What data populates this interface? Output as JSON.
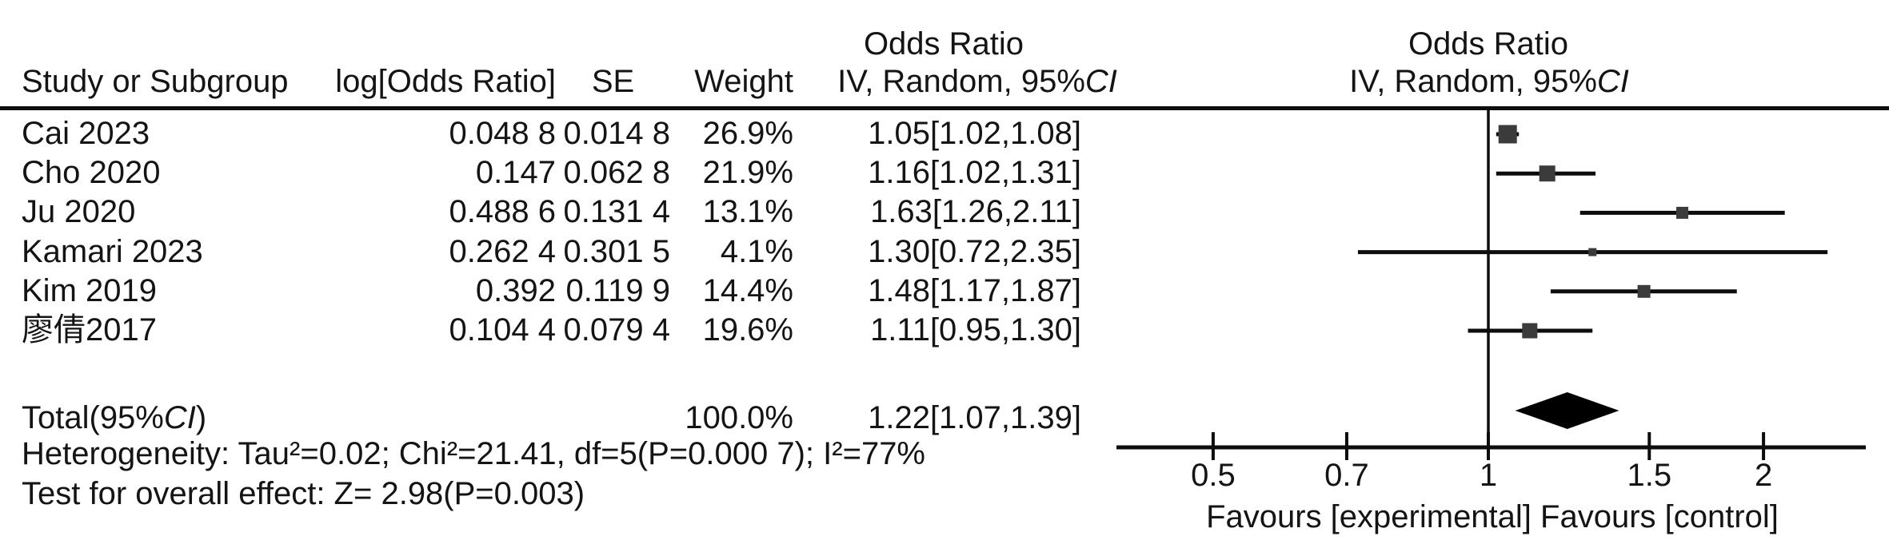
{
  "header": {
    "or_label": "Odds Ratio",
    "model_label_pre": "IV, Random, 95%",
    "ci_italic": "CI",
    "col_study": "Study or Subgroup",
    "col_logor": "log[Odds Ratio]",
    "col_se": "SE",
    "col_weight": "Weight"
  },
  "rows": [
    {
      "study": "Cai 2023",
      "log_or": "0.048 8",
      "se": "0.014 8",
      "weight": "26.9%",
      "ci": "1.05[1.02,1.08]"
    },
    {
      "study": "Cho 2020",
      "log_or": "0.147",
      "se": "0.062 8",
      "weight": "21.9%",
      "ci": "1.16[1.02,1.31]"
    },
    {
      "study": "Ju 2020",
      "log_or": "0.488 6",
      "se": "0.131 4",
      "weight": "13.1%",
      "ci": "1.63[1.26,2.11]"
    },
    {
      "study": "Kamari 2023",
      "log_or": "0.262 4",
      "se": "0.301 5",
      "weight": "4.1%",
      "ci": "1.30[0.72,2.35]"
    },
    {
      "study": "Kim 2019",
      "log_or": "0.392",
      "se": "0.119 9",
      "weight": "14.4%",
      "ci": "1.48[1.17,1.87]"
    },
    {
      "study": "廖倩2017",
      "log_or": "0.104 4",
      "se": "0.079 4",
      "weight": "19.6%",
      "ci": "1.11[0.95,1.30]"
    }
  ],
  "total": {
    "label_pre": "Total(95%",
    "label_ci": "CI",
    "label_post": ")",
    "weight": "100.0%",
    "ci": "1.22[1.07,1.39]"
  },
  "heterogeneity": "Heterogeneity: Tau²=0.02; Chi²=21.41, df=5(P=0.000 7); I²=77%",
  "overall_test": "Test for overall effect: Z= 2.98(P=0.003)",
  "axis": {
    "tick_labels": [
      "0.5",
      "0.7",
      "1",
      "1.5",
      "2"
    ],
    "favours": "Favours [experimental] Favours [control]"
  },
  "colors": {
    "line": "#0d0d0d",
    "square": "#3b3b3b",
    "diamond": "#000000",
    "text": "#141414"
  },
  "chart_data": {
    "type": "forest",
    "scale": "log",
    "effect_measure": "Odds Ratio",
    "model": "IV, Random, 95%CI",
    "null_line": 1,
    "x_ticks": [
      0.5,
      0.7,
      1,
      1.5,
      2
    ],
    "x_range": [
      0.39,
      2.6
    ],
    "xlabel": "Favours [experimental] Favours [control]",
    "studies": [
      {
        "name": "Cai 2023",
        "log_or": 0.0488,
        "se": 0.0148,
        "weight_pct": 26.9,
        "or": 1.05,
        "ci_low": 1.02,
        "ci_high": 1.08
      },
      {
        "name": "Cho 2020",
        "log_or": 0.147,
        "se": 0.0628,
        "weight_pct": 21.9,
        "or": 1.16,
        "ci_low": 1.02,
        "ci_high": 1.31
      },
      {
        "name": "Ju 2020",
        "log_or": 0.4886,
        "se": 0.1314,
        "weight_pct": 13.1,
        "or": 1.63,
        "ci_low": 1.26,
        "ci_high": 2.11
      },
      {
        "name": "Kamari 2023",
        "log_or": 0.2624,
        "se": 0.3015,
        "weight_pct": 4.1,
        "or": 1.3,
        "ci_low": 0.72,
        "ci_high": 2.35
      },
      {
        "name": "Kim 2019",
        "log_or": 0.392,
        "se": 0.1199,
        "weight_pct": 14.4,
        "or": 1.48,
        "ci_low": 1.17,
        "ci_high": 1.87
      },
      {
        "name": "廖倩2017",
        "log_or": 0.1044,
        "se": 0.0794,
        "weight_pct": 19.6,
        "or": 1.11,
        "ci_low": 0.95,
        "ci_high": 1.3
      }
    ],
    "total": {
      "name": "Total(95%CI)",
      "weight_pct": 100.0,
      "or": 1.22,
      "ci_low": 1.07,
      "ci_high": 1.39,
      "heterogeneity": {
        "tau2": 0.02,
        "chi2": 21.41,
        "df": 5,
        "p": 0.0007,
        "i2_pct": 77
      },
      "overall_effect": {
        "z": 2.98,
        "p": 0.003
      }
    }
  }
}
